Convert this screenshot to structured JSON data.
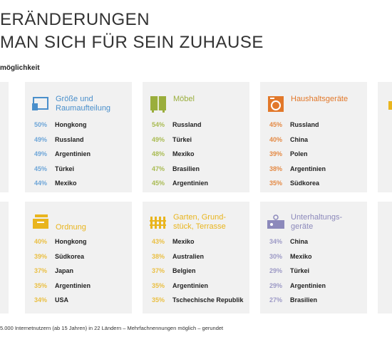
{
  "header": {
    "title_lines": [
      "ERÄNDERUNGEN",
      "MAN SICH FÜR SEIN ZUHAUSE"
    ],
    "subtitle": "möglichkeit"
  },
  "panels": [
    {
      "title_lines": [
        "Größe und",
        "Raumaufteilung"
      ],
      "color": "#4a8fcb",
      "pct_color": "#6ea6d8",
      "rows": [
        [
          "50%",
          "Hongkong"
        ],
        [
          "49%",
          "Russland"
        ],
        [
          "49%",
          "Argentinien"
        ],
        [
          "45%",
          "Türkei"
        ],
        [
          "44%",
          "Mexiko"
        ]
      ]
    },
    {
      "title_lines": [
        "Möbel"
      ],
      "color": "#9aae3c",
      "pct_color": "#a9bb52",
      "rows": [
        [
          "54%",
          "Russland"
        ],
        [
          "49%",
          "Türkei"
        ],
        [
          "48%",
          "Mexiko"
        ],
        [
          "47%",
          "Brasilien"
        ],
        [
          "45%",
          "Argentinien"
        ]
      ]
    },
    {
      "title_lines": [
        "Haushaltsgeräte"
      ],
      "color": "#e2782a",
      "pct_color": "#e48a45",
      "rows": [
        [
          "45%",
          "Russland"
        ],
        [
          "40%",
          "China"
        ],
        [
          "39%",
          "Polen"
        ],
        [
          "38%",
          "Argentinien"
        ],
        [
          "35%",
          "Südkorea"
        ]
      ]
    },
    {
      "title_lines": [
        "Ordnung"
      ],
      "color": "#e9b51e",
      "pct_color": "#eabf42",
      "rows": [
        [
          "40%",
          "Hongkong"
        ],
        [
          "39%",
          "Südkorea"
        ],
        [
          "37%",
          "Japan"
        ],
        [
          "35%",
          "Argentinien"
        ],
        [
          "34%",
          "USA"
        ]
      ]
    },
    {
      "title_lines": [
        "Garten, Grund-",
        "stück, Terrasse"
      ],
      "color": "#e9b51e",
      "pct_color": "#eabf42",
      "rows": [
        [
          "43%",
          "Mexiko"
        ],
        [
          "38%",
          "Australien"
        ],
        [
          "37%",
          "Belgien"
        ],
        [
          "35%",
          "Argentinien"
        ],
        [
          "35%",
          "Tschechische Republik"
        ]
      ]
    },
    {
      "title_lines": [
        "Unterhaltungs-",
        "geräte"
      ],
      "color": "#8c89bb",
      "pct_color": "#9d9ac6",
      "rows": [
        [
          "34%",
          "China"
        ],
        [
          "30%",
          "Mexiko"
        ],
        [
          "29%",
          "Türkei"
        ],
        [
          "29%",
          "Argentinien"
        ],
        [
          "27%",
          "Brasilien"
        ]
      ]
    }
  ],
  "footer": "5.000 Internetnutzern (ab 15 Jahren) in 22 Ländern – Mehrfachnennungen möglich – gerundet"
}
